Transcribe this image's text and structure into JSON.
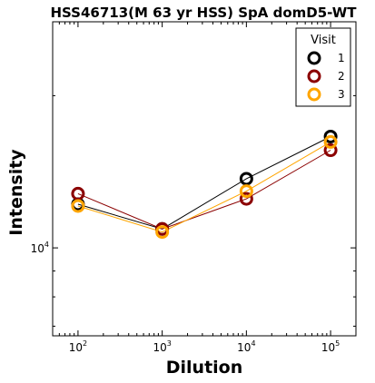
{
  "chart_data": {
    "type": "line",
    "title": "HSS46713(M 63 yr HSS) SpA domD5-WT",
    "xlabel": "Dilution",
    "ylabel": "Intensity",
    "x_scale": "log",
    "y_scale": "log",
    "x": [
      100,
      1000,
      10000,
      100000
    ],
    "x_tick_labels": [
      {
        "base": "10",
        "exp": "2"
      },
      {
        "base": "10",
        "exp": "3"
      },
      {
        "base": "10",
        "exp": "4"
      },
      {
        "base": "10",
        "exp": "5"
      }
    ],
    "y_tick_labels": [
      {
        "base": "10",
        "exp": "4",
        "value": 10000
      }
    ],
    "xlim": [
      50,
      200000
    ],
    "ylim": [
      6700,
      28000
    ],
    "grid": false,
    "legend": {
      "title": "Visit",
      "placement": "top-right"
    },
    "series": [
      {
        "name": "1",
        "color": "#000000",
        "values": [
          12200,
          10900,
          13700,
          16600
        ]
      },
      {
        "name": "2",
        "color": "#8b0000",
        "values": [
          12800,
          10900,
          12500,
          15600
        ]
      },
      {
        "name": "3",
        "color": "#ffa500",
        "values": [
          12100,
          10750,
          12950,
          16200
        ]
      }
    ]
  }
}
